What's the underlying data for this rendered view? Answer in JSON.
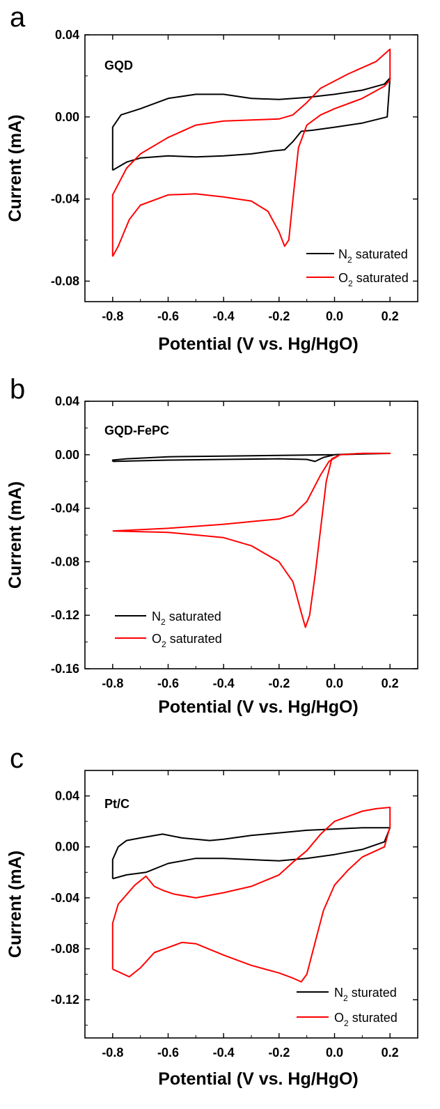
{
  "colors": {
    "n2": "#000000",
    "o2": "#ff0000"
  },
  "chart_data": [
    {
      "type": "line",
      "panel": "a",
      "title": "GQD",
      "xlabel": "Potential (V vs. Hg/HgO)",
      "ylabel": "Current (mA)",
      "xlim": [
        -0.9,
        0.3
      ],
      "ylim": [
        -0.09,
        0.04
      ],
      "x_ticks": [
        "-0.8",
        "-0.6",
        "-0.4",
        "-0.2",
        "0.0",
        "0.2"
      ],
      "y_ticks": [
        "0.04",
        "0.00",
        "-0.04",
        "-0.08"
      ],
      "y_tick_values": [
        0.04,
        0.0,
        -0.04,
        -0.08
      ],
      "legend": {
        "position": "bottom-right"
      },
      "series": [
        {
          "name": "N",
          "sub": "2",
          "suffix": " saturated",
          "color": "#000000",
          "points": [
            [
              -0.8,
              -0.026
            ],
            [
              -0.75,
              -0.022
            ],
            [
              -0.7,
              -0.02
            ],
            [
              -0.6,
              -0.019
            ],
            [
              -0.5,
              -0.0195
            ],
            [
              -0.4,
              -0.019
            ],
            [
              -0.3,
              -0.018
            ],
            [
              -0.22,
              -0.0165
            ],
            [
              -0.18,
              -0.016
            ],
            [
              -0.15,
              -0.012
            ],
            [
              -0.12,
              -0.007
            ],
            [
              -0.08,
              -0.0065
            ],
            [
              0.0,
              -0.005
            ],
            [
              0.1,
              -0.003
            ],
            [
              0.19,
              0.0
            ],
            [
              0.2,
              0.019
            ],
            [
              0.18,
              0.016
            ],
            [
              0.1,
              0.013
            ],
            [
              0.0,
              0.011
            ],
            [
              -0.1,
              0.0095
            ],
            [
              -0.2,
              0.0085
            ],
            [
              -0.3,
              0.009
            ],
            [
              -0.4,
              0.011
            ],
            [
              -0.5,
              0.011
            ],
            [
              -0.6,
              0.009
            ],
            [
              -0.7,
              0.004
            ],
            [
              -0.77,
              0.001
            ],
            [
              -0.8,
              -0.005
            ],
            [
              -0.8,
              -0.026
            ]
          ]
        },
        {
          "name": "O",
          "sub": "2",
          "suffix": " saturated",
          "color": "#ff0000",
          "points": [
            [
              -0.8,
              -0.068
            ],
            [
              -0.78,
              -0.063
            ],
            [
              -0.74,
              -0.05
            ],
            [
              -0.7,
              -0.043
            ],
            [
              -0.6,
              -0.038
            ],
            [
              -0.5,
              -0.0375
            ],
            [
              -0.4,
              -0.039
            ],
            [
              -0.3,
              -0.041
            ],
            [
              -0.24,
              -0.046
            ],
            [
              -0.2,
              -0.056
            ],
            [
              -0.18,
              -0.063
            ],
            [
              -0.165,
              -0.06
            ],
            [
              -0.15,
              -0.04
            ],
            [
              -0.13,
              -0.015
            ],
            [
              -0.1,
              -0.004
            ],
            [
              -0.05,
              0.001
            ],
            [
              0.0,
              0.004
            ],
            [
              0.1,
              0.009
            ],
            [
              0.18,
              0.015
            ],
            [
              0.2,
              0.018
            ],
            [
              0.2,
              0.033
            ],
            [
              0.15,
              0.027
            ],
            [
              0.05,
              0.021
            ],
            [
              -0.05,
              0.014
            ],
            [
              -0.1,
              0.007
            ],
            [
              -0.15,
              0.001
            ],
            [
              -0.2,
              -0.001
            ],
            [
              -0.3,
              -0.0015
            ],
            [
              -0.4,
              -0.002
            ],
            [
              -0.5,
              -0.004
            ],
            [
              -0.6,
              -0.01
            ],
            [
              -0.7,
              -0.018
            ],
            [
              -0.75,
              -0.025
            ],
            [
              -0.8,
              -0.038
            ],
            [
              -0.8,
              -0.068
            ]
          ]
        }
      ]
    },
    {
      "type": "line",
      "panel": "b",
      "title": "GQD-FePC",
      "xlabel": "Potential (V vs. Hg/HgO)",
      "ylabel": "Current (mA)",
      "xlim": [
        -0.9,
        0.3
      ],
      "ylim": [
        -0.16,
        0.04
      ],
      "x_ticks": [
        "-0.8",
        "-0.6",
        "-0.4",
        "-0.2",
        "0.0",
        "0.2"
      ],
      "y_ticks": [
        "0.04",
        "0.00",
        "-0.04",
        "-0.08",
        "-0.12",
        "-0.16"
      ],
      "y_tick_values": [
        0.04,
        0.0,
        -0.04,
        -0.08,
        -0.12,
        -0.16
      ],
      "legend": {
        "position": "bottom-left"
      },
      "series": [
        {
          "name": "N",
          "sub": "2",
          "suffix": " saturated",
          "color": "#000000",
          "points": [
            [
              -0.8,
              -0.005
            ],
            [
              -0.6,
              -0.004
            ],
            [
              -0.4,
              -0.0035
            ],
            [
              -0.2,
              -0.003
            ],
            [
              -0.1,
              -0.0035
            ],
            [
              -0.07,
              -0.005
            ],
            [
              -0.04,
              -0.002
            ],
            [
              0.0,
              0.0
            ],
            [
              0.1,
              0.0005
            ],
            [
              0.2,
              0.001
            ],
            [
              0.1,
              0.001
            ],
            [
              0.0,
              0.0
            ],
            [
              -0.2,
              -0.0005
            ],
            [
              -0.4,
              -0.001
            ],
            [
              -0.6,
              -0.0015
            ],
            [
              -0.75,
              -0.003
            ],
            [
              -0.8,
              -0.004
            ],
            [
              -0.8,
              -0.005
            ]
          ]
        },
        {
          "name": "O",
          "sub": "2",
          "suffix": " saturated",
          "color": "#ff0000",
          "points": [
            [
              -0.8,
              -0.057
            ],
            [
              -0.6,
              -0.058
            ],
            [
              -0.4,
              -0.062
            ],
            [
              -0.3,
              -0.068
            ],
            [
              -0.2,
              -0.08
            ],
            [
              -0.15,
              -0.095
            ],
            [
              -0.12,
              -0.118
            ],
            [
              -0.105,
              -0.129
            ],
            [
              -0.09,
              -0.12
            ],
            [
              -0.07,
              -0.09
            ],
            [
              -0.05,
              -0.055
            ],
            [
              -0.03,
              -0.02
            ],
            [
              -0.01,
              -0.003
            ],
            [
              0.02,
              0.0
            ],
            [
              0.1,
              0.001
            ],
            [
              0.2,
              0.001
            ],
            [
              0.1,
              0.001
            ],
            [
              0.02,
              0.0
            ],
            [
              -0.02,
              -0.005
            ],
            [
              -0.05,
              -0.015
            ],
            [
              -0.1,
              -0.035
            ],
            [
              -0.15,
              -0.045
            ],
            [
              -0.2,
              -0.048
            ],
            [
              -0.3,
              -0.05
            ],
            [
              -0.4,
              -0.052
            ],
            [
              -0.6,
              -0.055
            ],
            [
              -0.8,
              -0.057
            ]
          ]
        }
      ]
    },
    {
      "type": "line",
      "panel": "c",
      "title": "Pt/C",
      "xlabel": "Potential (V vs. Hg/HgO)",
      "ylabel": "Current (mA)",
      "xlim": [
        -0.9,
        0.3
      ],
      "ylim": [
        -0.15,
        0.06
      ],
      "x_ticks": [
        "-0.8",
        "-0.6",
        "-0.4",
        "-0.2",
        "0.0",
        "0.2"
      ],
      "y_ticks": [
        "0.04",
        "0.00",
        "-0.04",
        "-0.08",
        "-0.12"
      ],
      "y_tick_values": [
        0.04,
        0.0,
        -0.04,
        -0.08,
        -0.12
      ],
      "legend": {
        "position": "bottom-right"
      },
      "series": [
        {
          "name": "N",
          "sub": "2",
          "suffix": " sturated",
          "color": "#000000",
          "points": [
            [
              -0.8,
              -0.025
            ],
            [
              -0.75,
              -0.022
            ],
            [
              -0.68,
              -0.02
            ],
            [
              -0.6,
              -0.013
            ],
            [
              -0.5,
              -0.009
            ],
            [
              -0.4,
              -0.009
            ],
            [
              -0.3,
              -0.01
            ],
            [
              -0.2,
              -0.011
            ],
            [
              -0.1,
              -0.009
            ],
            [
              0.0,
              -0.006
            ],
            [
              0.1,
              -0.002
            ],
            [
              0.18,
              0.004
            ],
            [
              0.2,
              0.015
            ],
            [
              0.1,
              0.015
            ],
            [
              0.0,
              0.014
            ],
            [
              -0.1,
              0.013
            ],
            [
              -0.2,
              0.011
            ],
            [
              -0.3,
              0.009
            ],
            [
              -0.4,
              0.006
            ],
            [
              -0.45,
              0.005
            ],
            [
              -0.55,
              0.007
            ],
            [
              -0.62,
              0.01
            ],
            [
              -0.7,
              0.007
            ],
            [
              -0.75,
              0.005
            ],
            [
              -0.78,
              0.0
            ],
            [
              -0.8,
              -0.01
            ],
            [
              -0.8,
              -0.025
            ]
          ]
        },
        {
          "name": "O",
          "sub": "2",
          "suffix": " sturated",
          "color": "#ff0000",
          "points": [
            [
              -0.8,
              -0.096
            ],
            [
              -0.78,
              -0.098
            ],
            [
              -0.74,
              -0.102
            ],
            [
              -0.7,
              -0.095
            ],
            [
              -0.65,
              -0.083
            ],
            [
              -0.6,
              -0.079
            ],
            [
              -0.55,
              -0.075
            ],
            [
              -0.5,
              -0.076
            ],
            [
              -0.4,
              -0.085
            ],
            [
              -0.3,
              -0.093
            ],
            [
              -0.2,
              -0.099
            ],
            [
              -0.15,
              -0.103
            ],
            [
              -0.12,
              -0.106
            ],
            [
              -0.1,
              -0.1
            ],
            [
              -0.07,
              -0.075
            ],
            [
              -0.04,
              -0.05
            ],
            [
              0.0,
              -0.03
            ],
            [
              0.05,
              -0.018
            ],
            [
              0.1,
              -0.008
            ],
            [
              0.18,
              0.0
            ],
            [
              0.2,
              0.016
            ],
            [
              0.2,
              0.031
            ],
            [
              0.15,
              0.03
            ],
            [
              0.1,
              0.028
            ],
            [
              0.0,
              0.02
            ],
            [
              -0.05,
              0.01
            ],
            [
              -0.1,
              -0.003
            ],
            [
              -0.15,
              -0.012
            ],
            [
              -0.2,
              -0.022
            ],
            [
              -0.3,
              -0.031
            ],
            [
              -0.4,
              -0.036
            ],
            [
              -0.5,
              -0.04
            ],
            [
              -0.58,
              -0.037
            ],
            [
              -0.62,
              -0.034
            ],
            [
              -0.65,
              -0.031
            ],
            [
              -0.68,
              -0.023
            ],
            [
              -0.72,
              -0.03
            ],
            [
              -0.78,
              -0.045
            ],
            [
              -0.8,
              -0.06
            ],
            [
              -0.8,
              -0.096
            ]
          ]
        }
      ]
    }
  ]
}
